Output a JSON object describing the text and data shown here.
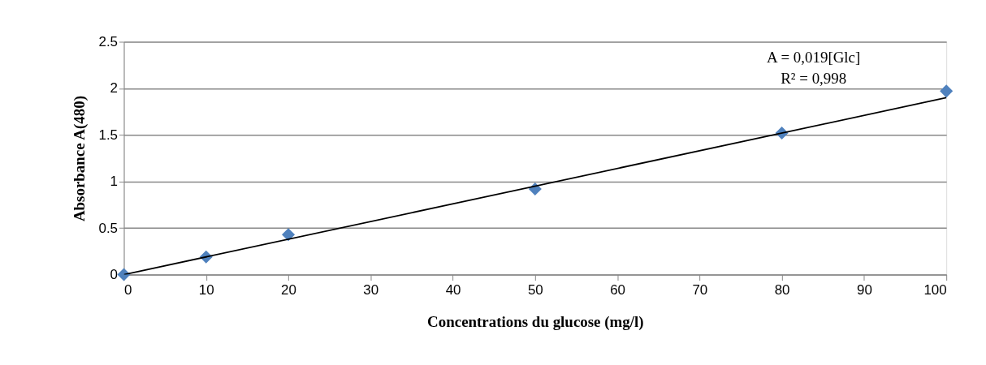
{
  "chart_data": {
    "type": "scatter",
    "xlabel": "Concentrations  du glucose (mg/l)",
    "ylabel": "Absorbance A(480)",
    "x": [
      0,
      10,
      20,
      50,
      80,
      100
    ],
    "series": [
      {
        "color": "#4f81bd",
        "marker": "diamond",
        "values": [
          0,
          0.19,
          0.43,
          0.92,
          1.52,
          1.97
        ]
      },
      {
        "type": "line",
        "color": "#000000",
        "x": [
          0,
          100
        ],
        "values": [
          0,
          1.9
        ]
      }
    ],
    "xlim": [
      0,
      100
    ],
    "xticks": [
      0,
      10,
      20,
      30,
      40,
      50,
      60,
      70,
      80,
      90,
      100
    ],
    "ylim": [
      0,
      2.5
    ],
    "yticks": [
      0,
      0.5,
      1,
      1.5,
      2,
      2.5
    ],
    "grid": "y",
    "legend": false,
    "annotations": [
      "A = 0,019[Glc]",
      "R² = 0,998"
    ]
  }
}
